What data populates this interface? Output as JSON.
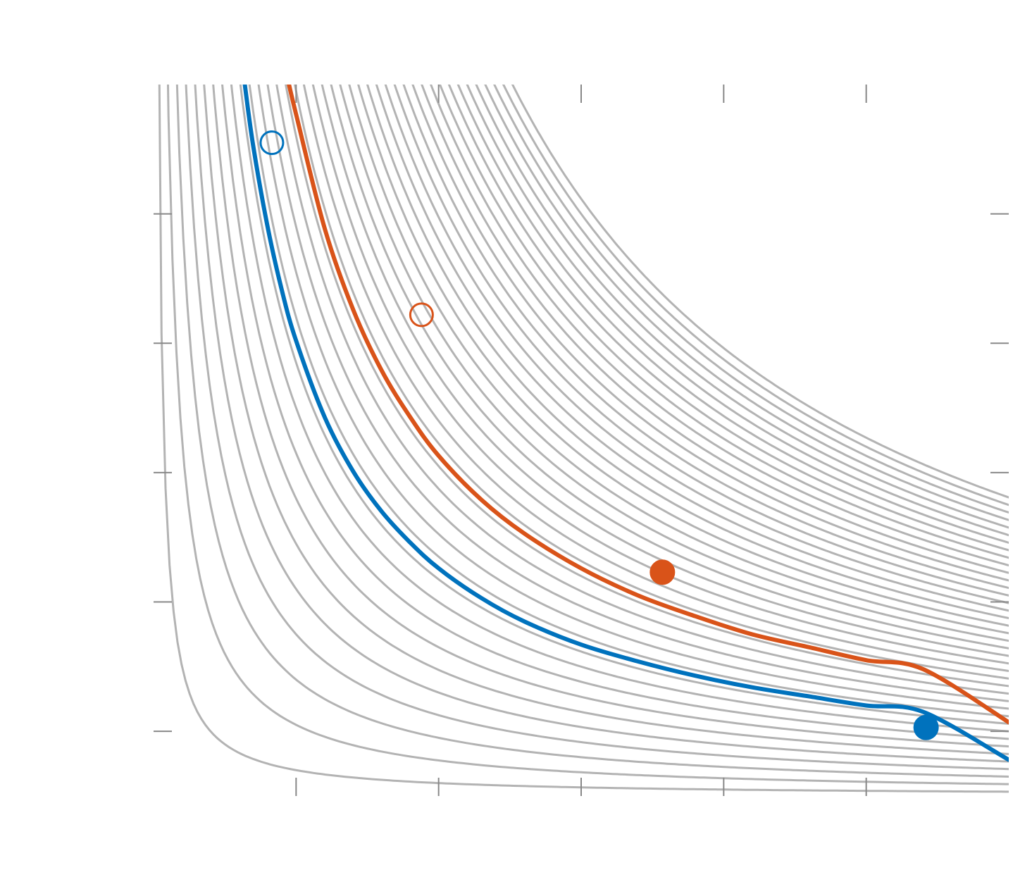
{
  "chart_data": {
    "type": "line",
    "title": "",
    "xlabel": "",
    "ylabel": "",
    "xlim": [
      0,
      6
    ],
    "ylim": [
      0,
      5.5
    ],
    "xticks": [
      1,
      2,
      3,
      4,
      5
    ],
    "yticks": [
      0.5,
      1.5,
      2.5,
      3.5,
      4.5
    ],
    "grid": false,
    "legend": "none",
    "background_contours": {
      "family": "x*y = c",
      "levels_start": 0.2,
      "levels_step": 0.35,
      "levels_count": 40,
      "color": "#b3b3b3"
    },
    "series": [
      {
        "color": "#0072bd",
        "points": [
          [
            0.64,
            5.5
          ],
          [
            0.7,
            5.02
          ],
          [
            0.8,
            4.4
          ],
          [
            0.9,
            3.91
          ],
          [
            1.0,
            3.52
          ],
          [
            1.2,
            2.93
          ],
          [
            1.4,
            2.51
          ],
          [
            1.6,
            2.2
          ],
          [
            1.8,
            1.96
          ],
          [
            2.0,
            1.76
          ],
          [
            2.3,
            1.53
          ],
          [
            2.6,
            1.35
          ],
          [
            3.0,
            1.17
          ],
          [
            3.4,
            1.04
          ],
          [
            3.8,
            0.93
          ],
          [
            4.2,
            0.84
          ],
          [
            4.6,
            0.77
          ],
          [
            5.0,
            0.7
          ],
          [
            5.4,
            0.65
          ],
          [
            6.0,
            0.28
          ]
        ]
      },
      {
        "color": "#d95319",
        "points": [
          [
            0.95,
            5.5
          ],
          [
            1.0,
            5.27
          ],
          [
            1.2,
            4.39
          ],
          [
            1.4,
            3.76
          ],
          [
            1.6,
            3.29
          ],
          [
            1.8,
            2.93
          ],
          [
            2.0,
            2.63
          ],
          [
            2.3,
            2.29
          ],
          [
            2.6,
            2.03
          ],
          [
            3.0,
            1.76
          ],
          [
            3.4,
            1.55
          ],
          [
            3.8,
            1.39
          ],
          [
            4.2,
            1.25
          ],
          [
            4.6,
            1.15
          ],
          [
            5.0,
            1.05
          ],
          [
            5.4,
            0.98
          ],
          [
            6.0,
            0.57
          ]
        ]
      }
    ],
    "markers": [
      {
        "x": 0.83,
        "y": 5.05,
        "color": "#0072bd",
        "filled": false
      },
      {
        "x": 5.42,
        "y": 0.53,
        "color": "#0072bd",
        "filled": true
      },
      {
        "x": 1.88,
        "y": 3.72,
        "color": "#d95319",
        "filled": false
      },
      {
        "x": 3.57,
        "y": 1.73,
        "color": "#d95319",
        "filled": true
      }
    ]
  }
}
